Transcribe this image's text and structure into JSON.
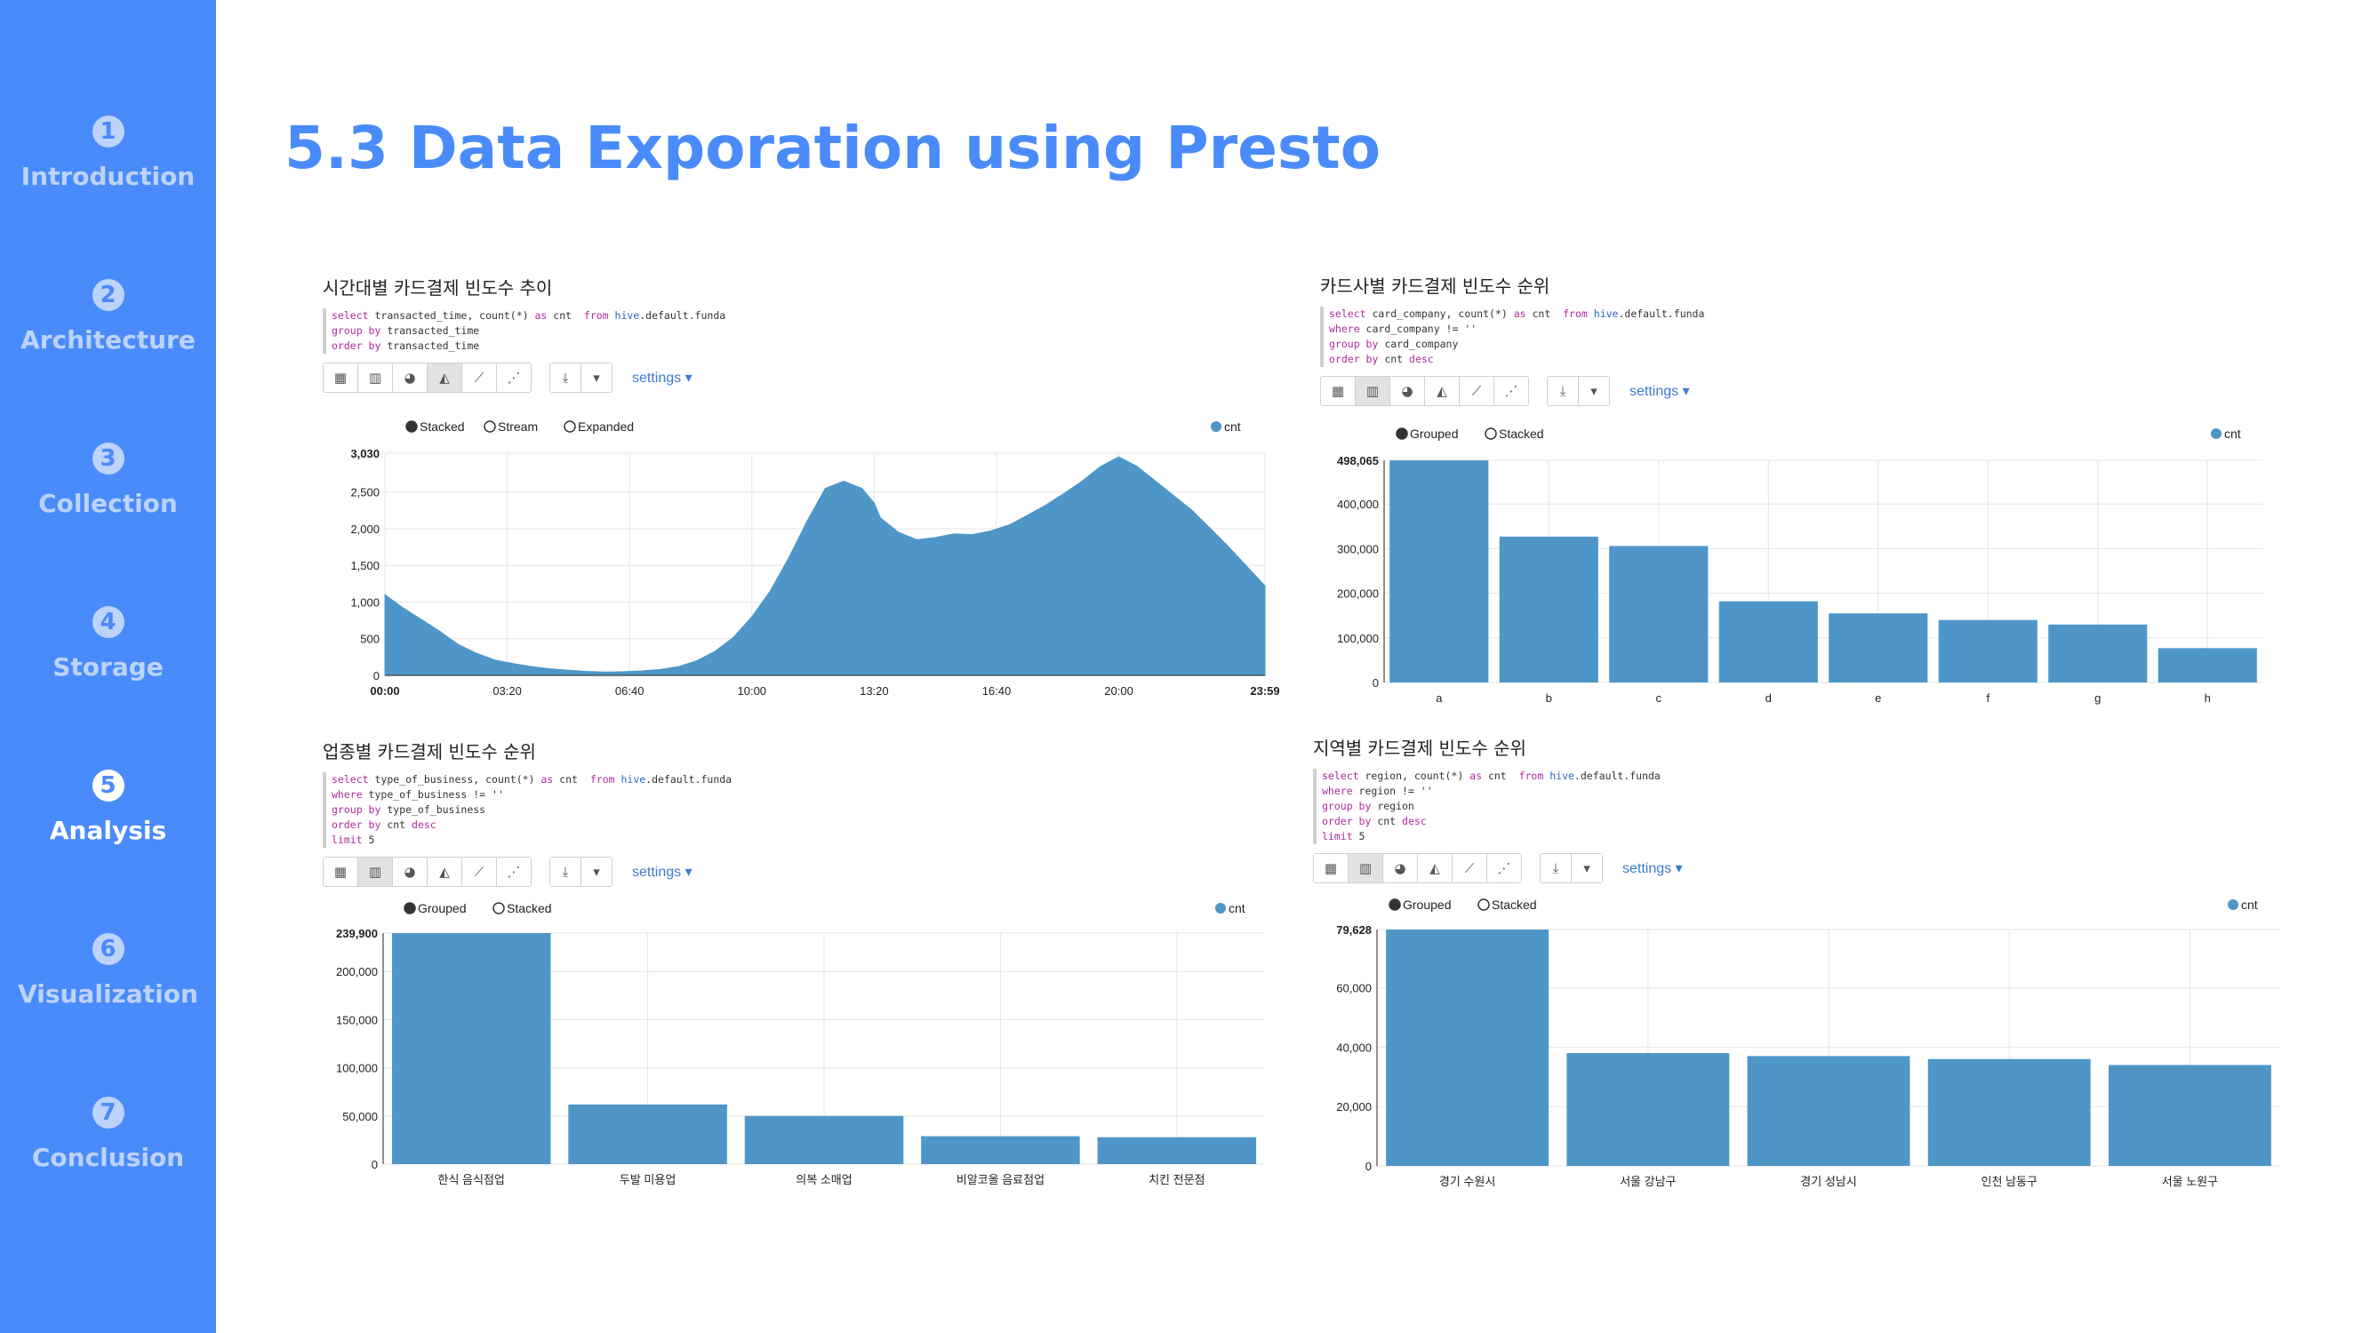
{
  "nav": {
    "items": [
      {
        "num": "1",
        "label": "Introduction",
        "active": false
      },
      {
        "num": "2",
        "label": "Architecture",
        "active": false
      },
      {
        "num": "3",
        "label": "Collection",
        "active": false
      },
      {
        "num": "4",
        "label": "Storage",
        "active": false
      },
      {
        "num": "5",
        "label": "Analysis",
        "active": true
      },
      {
        "num": "6",
        "label": "Visualization",
        "active": false
      },
      {
        "num": "7",
        "label": "Conclusion",
        "active": false
      }
    ]
  },
  "page": {
    "title": "5.3 Data Exporation using Presto"
  },
  "colors": {
    "accent": "#4a8bfb",
    "bar": "#4f96c8",
    "nav_inactive": "#bcd3fb"
  },
  "toolbar_icons": [
    "table-icon",
    "bar-chart-icon",
    "pie-chart-icon",
    "area-chart-icon",
    "line-chart-icon",
    "scatter-chart-icon"
  ],
  "panels": [
    {
      "title": "시간대별 카드결제 빈도수 추이",
      "query": [
        "select transacted_time, count(*) as cnt  from hive.default.funda",
        "group by transacted_time",
        "order by transacted_time"
      ],
      "selected_view": "area-chart-icon",
      "settings_label": "settings ▾",
      "options": [
        "Stacked",
        "Stream",
        "Expanded"
      ],
      "legend": "cnt"
    },
    {
      "title": "카드사별 카드결제 빈도수 순위",
      "query": [
        "select card_company, count(*) as cnt  from hive.default.funda",
        "where card_company != ''",
        "group by card_company",
        "order by cnt desc"
      ],
      "selected_view": "bar-chart-icon",
      "settings_label": "settings ▾",
      "options": [
        "Grouped",
        "Stacked"
      ],
      "legend": "cnt"
    },
    {
      "title": "업종별 카드결제 빈도수 순위",
      "query": [
        "select type_of_business, count(*) as cnt  from hive.default.funda",
        "where type_of_business != ''",
        "group by type_of_business",
        "order by cnt desc",
        "limit 5"
      ],
      "selected_view": "bar-chart-icon",
      "settings_label": "settings ▾",
      "options": [
        "Grouped",
        "Stacked"
      ],
      "legend": "cnt"
    },
    {
      "title": "지역별 카드결제 빈도수 순위",
      "query": [
        "select region, count(*) as cnt  from hive.default.funda",
        "where region != ''",
        "group by region",
        "order by cnt desc",
        "limit 5"
      ],
      "selected_view": "bar-chart-icon",
      "settings_label": "settings ▾",
      "options": [
        "Grouped",
        "Stacked"
      ],
      "legend": "cnt"
    }
  ],
  "chart_data": [
    {
      "type": "area",
      "x": [
        "00:00",
        "00:30",
        "01:00",
        "01:30",
        "02:00",
        "02:30",
        "03:00",
        "03:30",
        "04:00",
        "04:30",
        "05:00",
        "05:30",
        "06:00",
        "06:30",
        "07:00",
        "07:30",
        "08:00",
        "08:30",
        "09:00",
        "09:30",
        "10:00",
        "10:30",
        "11:00",
        "11:30",
        "12:00",
        "12:30",
        "13:00",
        "13:20",
        "13:30",
        "14:00",
        "14:30",
        "15:00",
        "15:30",
        "16:00",
        "16:30",
        "17:00",
        "17:30",
        "18:00",
        "18:30",
        "19:00",
        "19:30",
        "20:00",
        "20:30",
        "21:00",
        "21:30",
        "22:00",
        "22:30",
        "23:00",
        "23:30",
        "23:59"
      ],
      "values": [
        1100,
        920,
        760,
        600,
        420,
        300,
        210,
        160,
        120,
        90,
        70,
        55,
        45,
        50,
        60,
        80,
        120,
        200,
        330,
        520,
        800,
        1150,
        1600,
        2100,
        2550,
        2650,
        2550,
        2350,
        2150,
        1950,
        1850,
        1880,
        1930,
        1920,
        1970,
        2050,
        2180,
        2320,
        2480,
        2650,
        2850,
        2980,
        2850,
        2650,
        2450,
        2250,
        2000,
        1750,
        1480,
        1220
      ],
      "xticks": [
        "00:00",
        "03:20",
        "06:40",
        "10:00",
        "13:20",
        "16:40",
        "20:00",
        "23:59"
      ],
      "ylim": [
        0,
        3030
      ],
      "yticks": [
        "0",
        "500",
        "1,000",
        "1,500",
        "2,000",
        "2,500",
        "3,030"
      ],
      "legend": [
        "cnt"
      ],
      "grid": true
    },
    {
      "type": "bar",
      "categories": [
        "a",
        "b",
        "c",
        "d",
        "e",
        "f",
        "g",
        "h"
      ],
      "values": [
        498065,
        327000,
        306000,
        182000,
        155000,
        140000,
        130000,
        77000
      ],
      "ylim": [
        0,
        498065
      ],
      "yticks": [
        "0",
        "100,000",
        "200,000",
        "300,000",
        "400,000",
        "498,065"
      ],
      "legend": [
        "cnt"
      ],
      "grid": true
    },
    {
      "type": "bar",
      "categories": [
        "한식 음식점업",
        "두발 미용업",
        "의복 소매업",
        "비알코올 음료점업",
        "치킨 전문점"
      ],
      "values": [
        239900,
        62000,
        50000,
        29000,
        28000
      ],
      "ylim": [
        0,
        239900
      ],
      "yticks": [
        "0",
        "50,000",
        "100,000",
        "150,000",
        "200,000",
        "239,900"
      ],
      "legend": [
        "cnt"
      ],
      "grid": true
    },
    {
      "type": "bar",
      "categories": [
        "경기 수원시",
        "서울 강남구",
        "경기 성남시",
        "인천 남동구",
        "서울 노원구"
      ],
      "values": [
        79628,
        38000,
        37000,
        36000,
        34000
      ],
      "ylim": [
        0,
        79628
      ],
      "yticks": [
        "0",
        "20,000",
        "40,000",
        "60,000",
        "79,628"
      ],
      "legend": [
        "cnt"
      ],
      "grid": true
    }
  ]
}
